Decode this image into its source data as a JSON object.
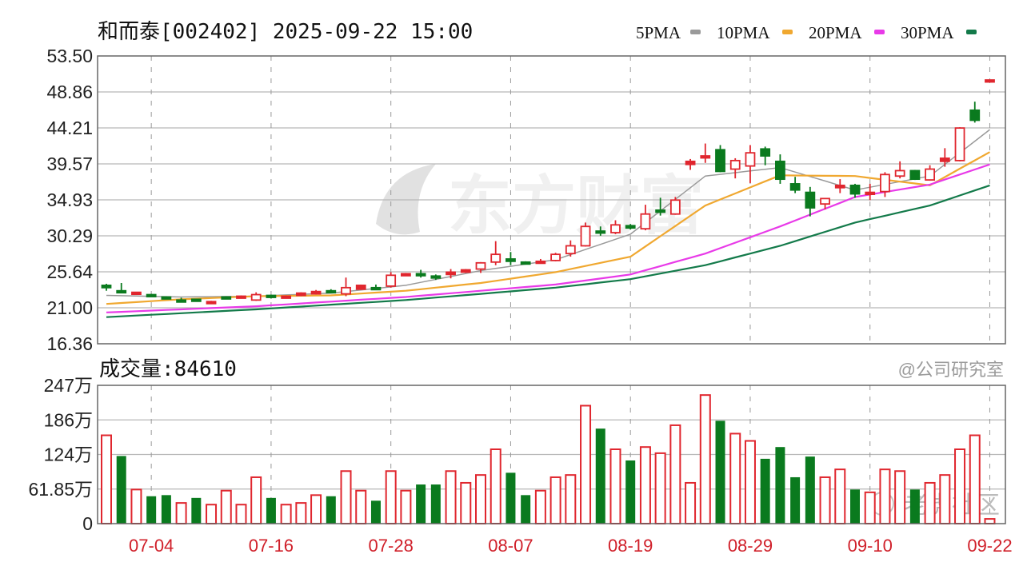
{
  "header": {
    "title": "和而泰[002402] 2025-09-22 15:00"
  },
  "volume_header": {
    "label": "成交量:84610"
  },
  "watermarks": {
    "center": "东方财富",
    "bottom_right_1": "老虎社区",
    "bottom_right_2": "@公司研究室"
  },
  "colors": {
    "up": "#e0262e",
    "down": "#0a7a1e",
    "ma5": "#9a9a9a",
    "ma10": "#f0a830",
    "ma20": "#e83ae8",
    "ma30": "#137a4a",
    "grid": "#b8b8b8",
    "axis": "#666666"
  },
  "chart_data": {
    "type": "candlestick",
    "title": "和而泰[002402] 2025-09-22 15:00",
    "legend": [
      {
        "name": "5PMA",
        "color_key": "ma5"
      },
      {
        "name": "10PMA",
        "color_key": "ma10"
      },
      {
        "name": "20PMA",
        "color_key": "ma20"
      },
      {
        "name": "30PMA",
        "color_key": "ma30"
      }
    ],
    "legend_position": "top-right",
    "price_ticks": [
      "53.50",
      "48.86",
      "44.21",
      "39.57",
      "34.93",
      "30.29",
      "25.64",
      "21.00",
      "16.36"
    ],
    "price_range": [
      16.36,
      53.5
    ],
    "x_labels": [
      {
        "bar": 3,
        "label": "07-04"
      },
      {
        "bar": 11,
        "label": "07-16"
      },
      {
        "bar": 19,
        "label": "07-28"
      },
      {
        "bar": 27,
        "label": "08-07"
      },
      {
        "bar": 35,
        "label": "08-19"
      },
      {
        "bar": 43,
        "label": "08-29"
      },
      {
        "bar": 51,
        "label": "09-10"
      },
      {
        "bar": 59,
        "label": "09-22"
      }
    ],
    "ohlc": [
      [
        23.9,
        23.6,
        24.1,
        23.2
      ],
      [
        23.2,
        23.1,
        24.2,
        23.0
      ],
      [
        22.9,
        23.0,
        23.0,
        22.8
      ],
      [
        22.7,
        22.6,
        22.8,
        22.5
      ],
      [
        22.4,
        22.2,
        22.5,
        22.1
      ],
      [
        22.0,
        21.9,
        22.3,
        21.8
      ],
      [
        22.1,
        21.9,
        22.1,
        21.8
      ],
      [
        21.6,
        21.8,
        21.9,
        21.5
      ],
      [
        22.4,
        22.2,
        22.5,
        22.1
      ],
      [
        22.4,
        22.5,
        22.6,
        22.3
      ],
      [
        22.0,
        22.7,
        23.0,
        21.9
      ],
      [
        22.6,
        22.5,
        22.7,
        22.2
      ],
      [
        22.3,
        22.5,
        22.6,
        22.2
      ],
      [
        22.6,
        22.9,
        23.0,
        22.5
      ],
      [
        22.8,
        23.1,
        23.3,
        22.7
      ],
      [
        23.2,
        23.0,
        23.4,
        22.9
      ],
      [
        22.8,
        23.6,
        24.9,
        22.5
      ],
      [
        23.4,
        23.9,
        24.0,
        23.3
      ],
      [
        23.6,
        23.4,
        24.0,
        23.3
      ],
      [
        23.8,
        25.2,
        25.6,
        23.6
      ],
      [
        25.2,
        25.4,
        25.5,
        25.1
      ],
      [
        25.4,
        25.3,
        25.9,
        24.9
      ],
      [
        25.1,
        25.0,
        25.3,
        24.6
      ],
      [
        25.3,
        25.6,
        26.0,
        24.8
      ],
      [
        25.6,
        25.9,
        26.0,
        25.5
      ],
      [
        26.0,
        26.8,
        26.9,
        25.5
      ],
      [
        26.9,
        27.9,
        29.6,
        26.5
      ],
      [
        27.3,
        27.0,
        28.2,
        26.5
      ],
      [
        26.9,
        26.8,
        27.0,
        26.7
      ],
      [
        26.9,
        27.0,
        27.3,
        26.8
      ],
      [
        27.1,
        27.9,
        28.1,
        27.0
      ],
      [
        28.0,
        29.0,
        29.7,
        27.6
      ],
      [
        29.0,
        31.5,
        32.0,
        28.9
      ],
      [
        30.9,
        30.8,
        31.5,
        30.3
      ],
      [
        30.7,
        31.7,
        32.3,
        30.5
      ],
      [
        31.6,
        31.3,
        31.8,
        31.1
      ],
      [
        31.2,
        33.1,
        34.3,
        31.0
      ],
      [
        33.6,
        33.4,
        35.2,
        32.9
      ],
      [
        33.1,
        34.9,
        35.3,
        33.0
      ],
      [
        39.5,
        39.9,
        40.2,
        38.8
      ],
      [
        40.4,
        40.6,
        42.2,
        39.7
      ],
      [
        41.4,
        38.6,
        42.0,
        38.5
      ],
      [
        38.9,
        40.0,
        40.3,
        37.7
      ],
      [
        39.3,
        41.0,
        42.0,
        37.1
      ],
      [
        41.5,
        40.6,
        41.8,
        39.4
      ],
      [
        39.9,
        37.6,
        40.8,
        37.0
      ],
      [
        37.0,
        36.2,
        37.9,
        35.8
      ],
      [
        35.9,
        33.9,
        36.6,
        32.8
      ],
      [
        34.4,
        35.1,
        35.1,
        33.7
      ],
      [
        36.5,
        36.8,
        37.6,
        35.8
      ],
      [
        36.8,
        35.7,
        37.0,
        35.2
      ],
      [
        35.7,
        35.9,
        37.0,
        34.9
      ],
      [
        36.0,
        38.2,
        38.5,
        35.3
      ],
      [
        38.0,
        38.7,
        39.9,
        37.7
      ],
      [
        38.7,
        37.6,
        38.8,
        37.5
      ],
      [
        37.5,
        38.9,
        39.4,
        37.4
      ],
      [
        39.9,
        40.3,
        41.6,
        39.2
      ],
      [
        40.0,
        44.2,
        44.3,
        39.9
      ],
      [
        46.5,
        45.2,
        47.6,
        44.9
      ],
      [
        50.4,
        50.4,
        50.4,
        50.4
      ]
    ],
    "ma_sample_bars": [
      0,
      5,
      10,
      15,
      20,
      25,
      30,
      35,
      40,
      45,
      50,
      55,
      59
    ],
    "ma": {
      "ma5": [
        22.6,
        22.4,
        22.5,
        22.9,
        23.9,
        25.8,
        27.2,
        30.5,
        38.0,
        39.1,
        36.2,
        38.0,
        44.0
      ],
      "ma10": [
        21.5,
        22.1,
        22.5,
        22.6,
        23.2,
        24.2,
        25.6,
        27.6,
        34.2,
        38.1,
        38.0,
        36.8,
        41.1
      ],
      "ma20": [
        20.4,
        20.8,
        21.2,
        21.8,
        22.4,
        23.2,
        24.0,
        25.3,
        28.0,
        31.5,
        35.3,
        36.9,
        39.5
      ],
      "ma30": [
        19.8,
        20.3,
        20.8,
        21.4,
        22.0,
        22.8,
        23.6,
        24.7,
        26.5,
        29.0,
        32.0,
        34.2,
        36.8
      ]
    },
    "volume_unit": "万",
    "volume_ticks": [
      "247万",
      "186万",
      "124万",
      "61.85万",
      "0"
    ],
    "volume_tick_values": [
      247.4,
      185.55,
      123.7,
      61.85,
      0
    ],
    "volume": [
      158,
      121,
      61,
      49,
      51,
      37,
      46,
      34,
      59,
      34,
      83,
      46,
      34,
      37,
      51,
      49,
      94,
      59,
      41,
      94,
      59,
      70,
      70,
      94,
      73,
      87,
      133,
      91,
      51,
      59,
      83,
      87,
      211,
      170,
      133,
      113,
      137,
      126,
      176,
      73,
      230,
      184,
      161,
      148,
      116,
      137,
      83,
      120,
      83,
      97,
      61,
      56,
      97,
      94,
      61,
      73,
      87,
      133,
      158,
      8.461
    ],
    "volume_up": [
      1,
      0,
      1,
      0,
      0,
      1,
      0,
      1,
      1,
      1,
      1,
      0,
      1,
      1,
      1,
      0,
      1,
      1,
      0,
      1,
      1,
      0,
      0,
      1,
      1,
      1,
      1,
      0,
      0,
      1,
      1,
      1,
      1,
      0,
      1,
      0,
      1,
      1,
      1,
      1,
      1,
      0,
      1,
      1,
      0,
      0,
      0,
      0,
      1,
      1,
      0,
      1,
      1,
      1,
      0,
      1,
      1,
      1,
      1,
      1
    ]
  }
}
